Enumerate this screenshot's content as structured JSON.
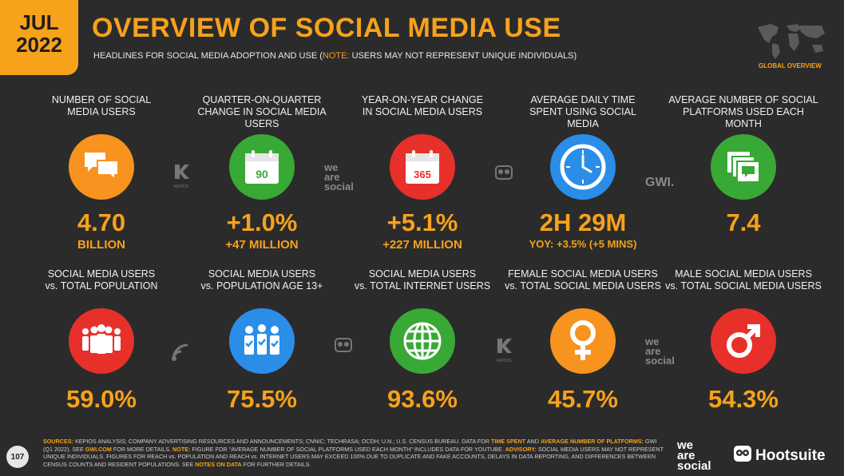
{
  "header": {
    "month": "JUL",
    "year": "2022",
    "title": "OVERVIEW OF SOCIAL MEDIA USE",
    "subtitle_pre": "HEADLINES FOR SOCIAL MEDIA ADOPTION AND USE (",
    "subtitle_note": "NOTE:",
    "subtitle_post": " USERS MAY NOT REPRESENT UNIQUE INDIVIDUALS)",
    "global_label": "GLOBAL OVERVIEW"
  },
  "row1": [
    {
      "label": "NUMBER OF SOCIAL MEDIA USERS",
      "value": "4.70",
      "sub": "BILLION",
      "icon": "speech-bubbles-icon",
      "color": "#f7931e"
    },
    {
      "label": "QUARTER-ON-QUARTER CHANGE IN SOCIAL MEDIA USERS",
      "value": "+1.0%",
      "sub": "+47 MILLION",
      "icon": "calendar-90-icon",
      "icon_text": "90",
      "color": "#39a935"
    },
    {
      "label": "YEAR-ON-YEAR CHANGE IN SOCIAL MEDIA USERS",
      "value": "+5.1%",
      "sub": "+227 MILLION",
      "icon": "calendar-365-icon",
      "icon_text": "365",
      "color": "#e8302a"
    },
    {
      "label": "AVERAGE DAILY TIME SPENT USING SOCIAL MEDIA",
      "value": "2H 29M",
      "sub": "YOY: +3.5% (+5 MINS)",
      "icon": "clock-icon",
      "color": "#2a8ee8"
    },
    {
      "label": "AVERAGE NUMBER OF SOCIAL PLATFORMS USED EACH MONTH",
      "value": "7.4",
      "sub": "",
      "icon": "stacked-chat-icon",
      "color": "#39a935"
    }
  ],
  "row2": [
    {
      "label1": "SOCIAL MEDIA USERS",
      "label2": "vs. TOTAL POPULATION",
      "value": "59.0%",
      "icon": "crowd-icon",
      "color": "#e8302a"
    },
    {
      "label1": "SOCIAL MEDIA USERS",
      "label2": "vs. POPULATION AGE 13+",
      "value": "75.5%",
      "icon": "people-check-icon",
      "color": "#2a8ee8"
    },
    {
      "label1": "SOCIAL MEDIA USERS",
      "label2": "vs. TOTAL INTERNET USERS",
      "value": "93.6%",
      "icon": "globe-icon",
      "color": "#39a935"
    },
    {
      "label1": "FEMALE SOCIAL MEDIA USERS",
      "label2": "vs. TOTAL SOCIAL MEDIA USERS",
      "value": "45.7%",
      "icon": "female-symbol-icon",
      "color": "#f7931e"
    },
    {
      "label1": "MALE SOCIAL MEDIA USERS",
      "label2": "vs. TOTAL SOCIAL MEDIA USERS",
      "value": "54.3%",
      "icon": "male-symbol-icon",
      "color": "#e8302a"
    }
  ],
  "watermarks": {
    "kepios": "KEPIOS",
    "we": "we",
    "are": "are",
    "social": "social",
    "gwi": "GWI."
  },
  "footer": {
    "sources_label": "SOURCES:",
    "sources_text": " KEPIOS ANALYSIS; COMPANY ADVERTISING RESOURCES AND ANNOUNCEMENTS; CNNIC; TECHRASA; OCDH; U.N.; U.S. CENSUS BUREAU. DATA FOR ",
    "time_spent": "TIME SPENT",
    "and": " AND ",
    "avg_platforms": "AVERAGE NUMBER OF PLATFORMS:",
    "gwi_text": " GWI (Q1 2022). SEE ",
    "gwi_link": "GWI.COM",
    "more_details": " FOR MORE DETAILS. ",
    "note_label": "NOTE:",
    "note_text": " FIGURE FOR \"AVERAGE NUMBER OF SOCIAL PLATFORMS USED EACH MONTH\" INCLUDES DATA FOR YOUTUBE. ",
    "advisory_label": "ADVISORY:",
    "advisory_text": " SOCIAL MEDIA USERS MAY NOT REPRESENT UNIQUE INDIVIDUALS. FIGURES FOR REACH vs. POPULATION AND REACH vs. INTERNET USERS MAY EXCEED 100% DUE TO DUPLICATE AND FAKE ACCOUNTS, DELAYS IN DATA REPORTING, AND DIFFERENCES BETWEEN CENSUS COUNTS AND RESIDENT POPULATIONS. SEE ",
    "notes_link": "NOTES ON DATA",
    "final": " FOR FURTHER DETAILS."
  },
  "page_number": "107",
  "brand": {
    "wrs_line1": "we",
    "wrs_line2": "are",
    "wrs_line3": "social",
    "hootsuite": "Hootsuite"
  }
}
